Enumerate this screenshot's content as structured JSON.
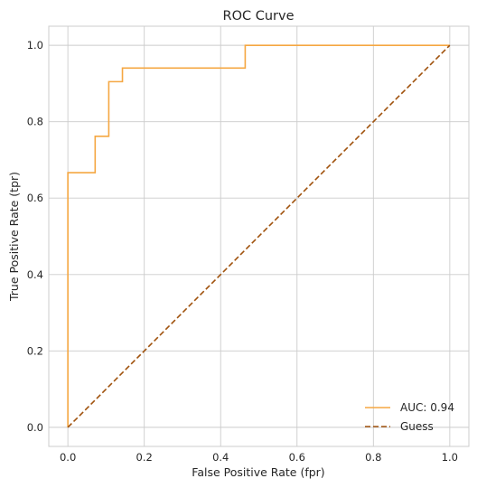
{
  "chart_data": {
    "type": "line",
    "title": "ROC Curve",
    "xlabel": "False Positive Rate (fpr)",
    "ylabel": "True Positive Rate (tpr)",
    "xlim": [
      -0.05,
      1.05
    ],
    "ylim": [
      -0.05,
      1.05
    ],
    "xticks": [
      "0.0",
      "0.2",
      "0.4",
      "0.6",
      "0.8",
      "1.0"
    ],
    "yticks": [
      "0.0",
      "0.2",
      "0.4",
      "0.6",
      "0.8",
      "1.0"
    ],
    "grid": true,
    "legend_position": "lower-right",
    "series": [
      {
        "name": "AUC: 0.94",
        "style": "solid",
        "color": "#f5a742",
        "x": [
          0.0,
          0.0,
          0.0714,
          0.0714,
          0.1071,
          0.1071,
          0.1429,
          0.1429,
          0.4643,
          0.4643,
          1.0
        ],
        "y": [
          0.0,
          0.6667,
          0.6667,
          0.7619,
          0.7619,
          0.9048,
          0.9048,
          0.9405,
          0.9405,
          1.0,
          1.0
        ]
      },
      {
        "name": "Guess",
        "style": "dashed",
        "color": "#a0520d",
        "x": [
          0.0,
          1.0
        ],
        "y": [
          0.0,
          1.0
        ]
      }
    ]
  }
}
